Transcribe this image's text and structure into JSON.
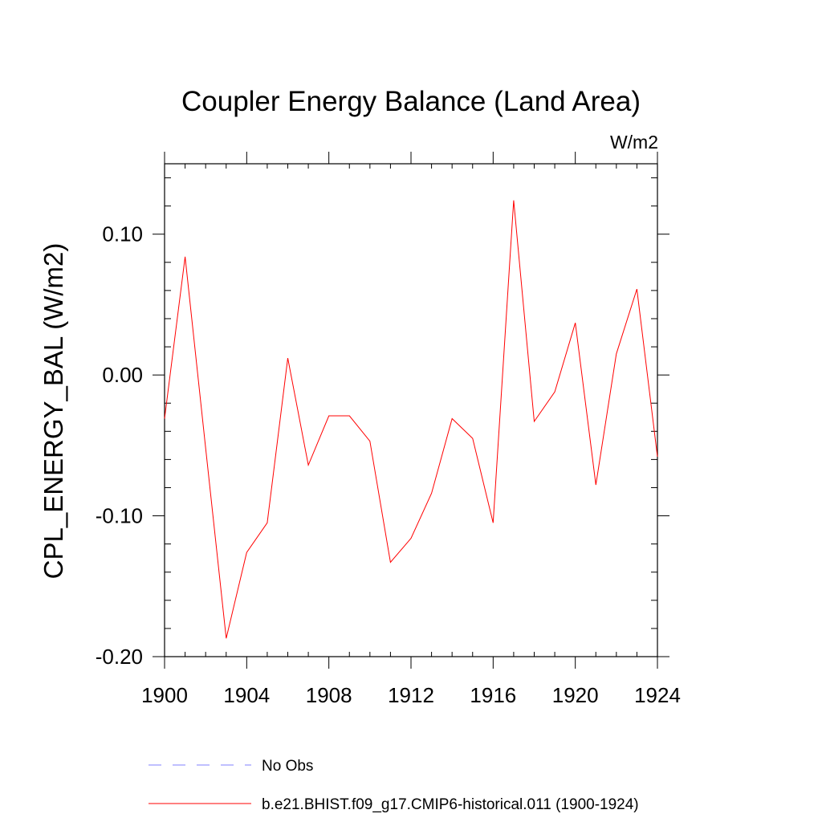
{
  "chart_data": {
    "type": "line",
    "title": "Coupler Energy Balance (Land Area)",
    "units": "W/m2",
    "ylabel": "CPL_ENERGY_BAL  (W/m2)",
    "xlabel": "",
    "xlim": [
      1900,
      1924
    ],
    "ylim": [
      -0.2,
      0.15
    ],
    "x_ticks": [
      1900,
      1904,
      1908,
      1912,
      1916,
      1920,
      1924
    ],
    "x_tick_labels": [
      "1900",
      "1904",
      "1908",
      "1912",
      "1916",
      "1920",
      "1924"
    ],
    "y_ticks": [
      -0.2,
      -0.1,
      0.0,
      0.1
    ],
    "y_tick_labels": [
      "-0.20",
      "-0.10",
      "0.00",
      "0.10"
    ],
    "grid": false,
    "legend_position": "bottom",
    "series": [
      {
        "name": "b.e21.BHIST.f09_g17.CMIP6-historical.011 (1900-1924)",
        "color": "#ff0000",
        "style": "solid",
        "x": [
          1900,
          1901,
          1902,
          1903,
          1904,
          1905,
          1906,
          1907,
          1908,
          1909,
          1910,
          1911,
          1912,
          1913,
          1914,
          1915,
          1916,
          1917,
          1918,
          1919,
          1920,
          1921,
          1922,
          1923,
          1924
        ],
        "values": [
          -0.031,
          0.084,
          -0.052,
          -0.187,
          -0.126,
          -0.105,
          0.012,
          -0.064,
          -0.029,
          -0.029,
          -0.047,
          -0.133,
          -0.116,
          -0.084,
          -0.031,
          -0.045,
          -0.105,
          0.124,
          -0.033,
          -0.012,
          0.037,
          -0.078,
          0.015,
          0.061,
          -0.058
        ]
      }
    ],
    "legend": [
      {
        "label": "No Obs",
        "color": "#8080ff",
        "style": "dashed"
      },
      {
        "label": "b.e21.BHIST.f09_g17.CMIP6-historical.011 (1900-1924)",
        "color": "#ff0000",
        "style": "solid"
      }
    ]
  }
}
